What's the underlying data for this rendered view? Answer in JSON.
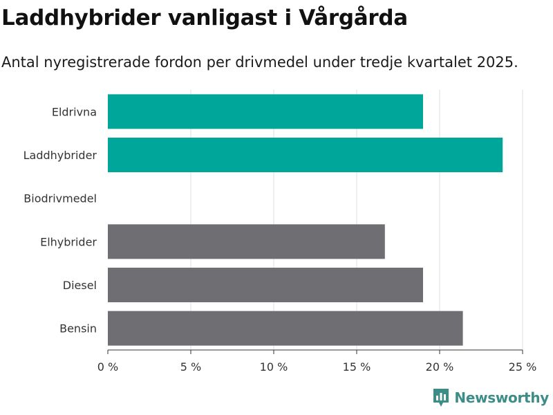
{
  "header": {
    "title": "Laddhybrider vanligast i Vårgårda",
    "subtitle": "Antal nyregistrerade fordon per drivmedel under tredje kvartalet 2025."
  },
  "brand": {
    "name": "Newsworthy",
    "icon": "newsworthy-logo-icon",
    "color": "#3c8c88"
  },
  "colors": {
    "highlight": "#00a69a",
    "default": "#6f6e73",
    "grid": "#dddddd",
    "axis": "#333333"
  },
  "chart_data": {
    "type": "bar",
    "orientation": "horizontal",
    "title": "Laddhybrider vanligast i Vårgårda",
    "subtitle": "Antal nyregistrerade fordon per drivmedel under tredje kvartalet 2025.",
    "categories": [
      "Eldrivna",
      "Laddhybrider",
      "Biodrivmedel",
      "Elhybrider",
      "Diesel",
      "Bensin"
    ],
    "values": [
      19.0,
      23.8,
      0,
      16.7,
      19.0,
      21.4
    ],
    "highlighted": [
      true,
      true,
      false,
      false,
      false,
      false
    ],
    "xlim": [
      0,
      25
    ],
    "xticks": [
      0,
      5,
      10,
      15,
      20,
      25
    ],
    "xtick_labels": [
      "0 %",
      "5 %",
      "10 %",
      "15 %",
      "20 %",
      "25 %"
    ],
    "xlabel": "",
    "ylabel": "",
    "grid": true
  }
}
